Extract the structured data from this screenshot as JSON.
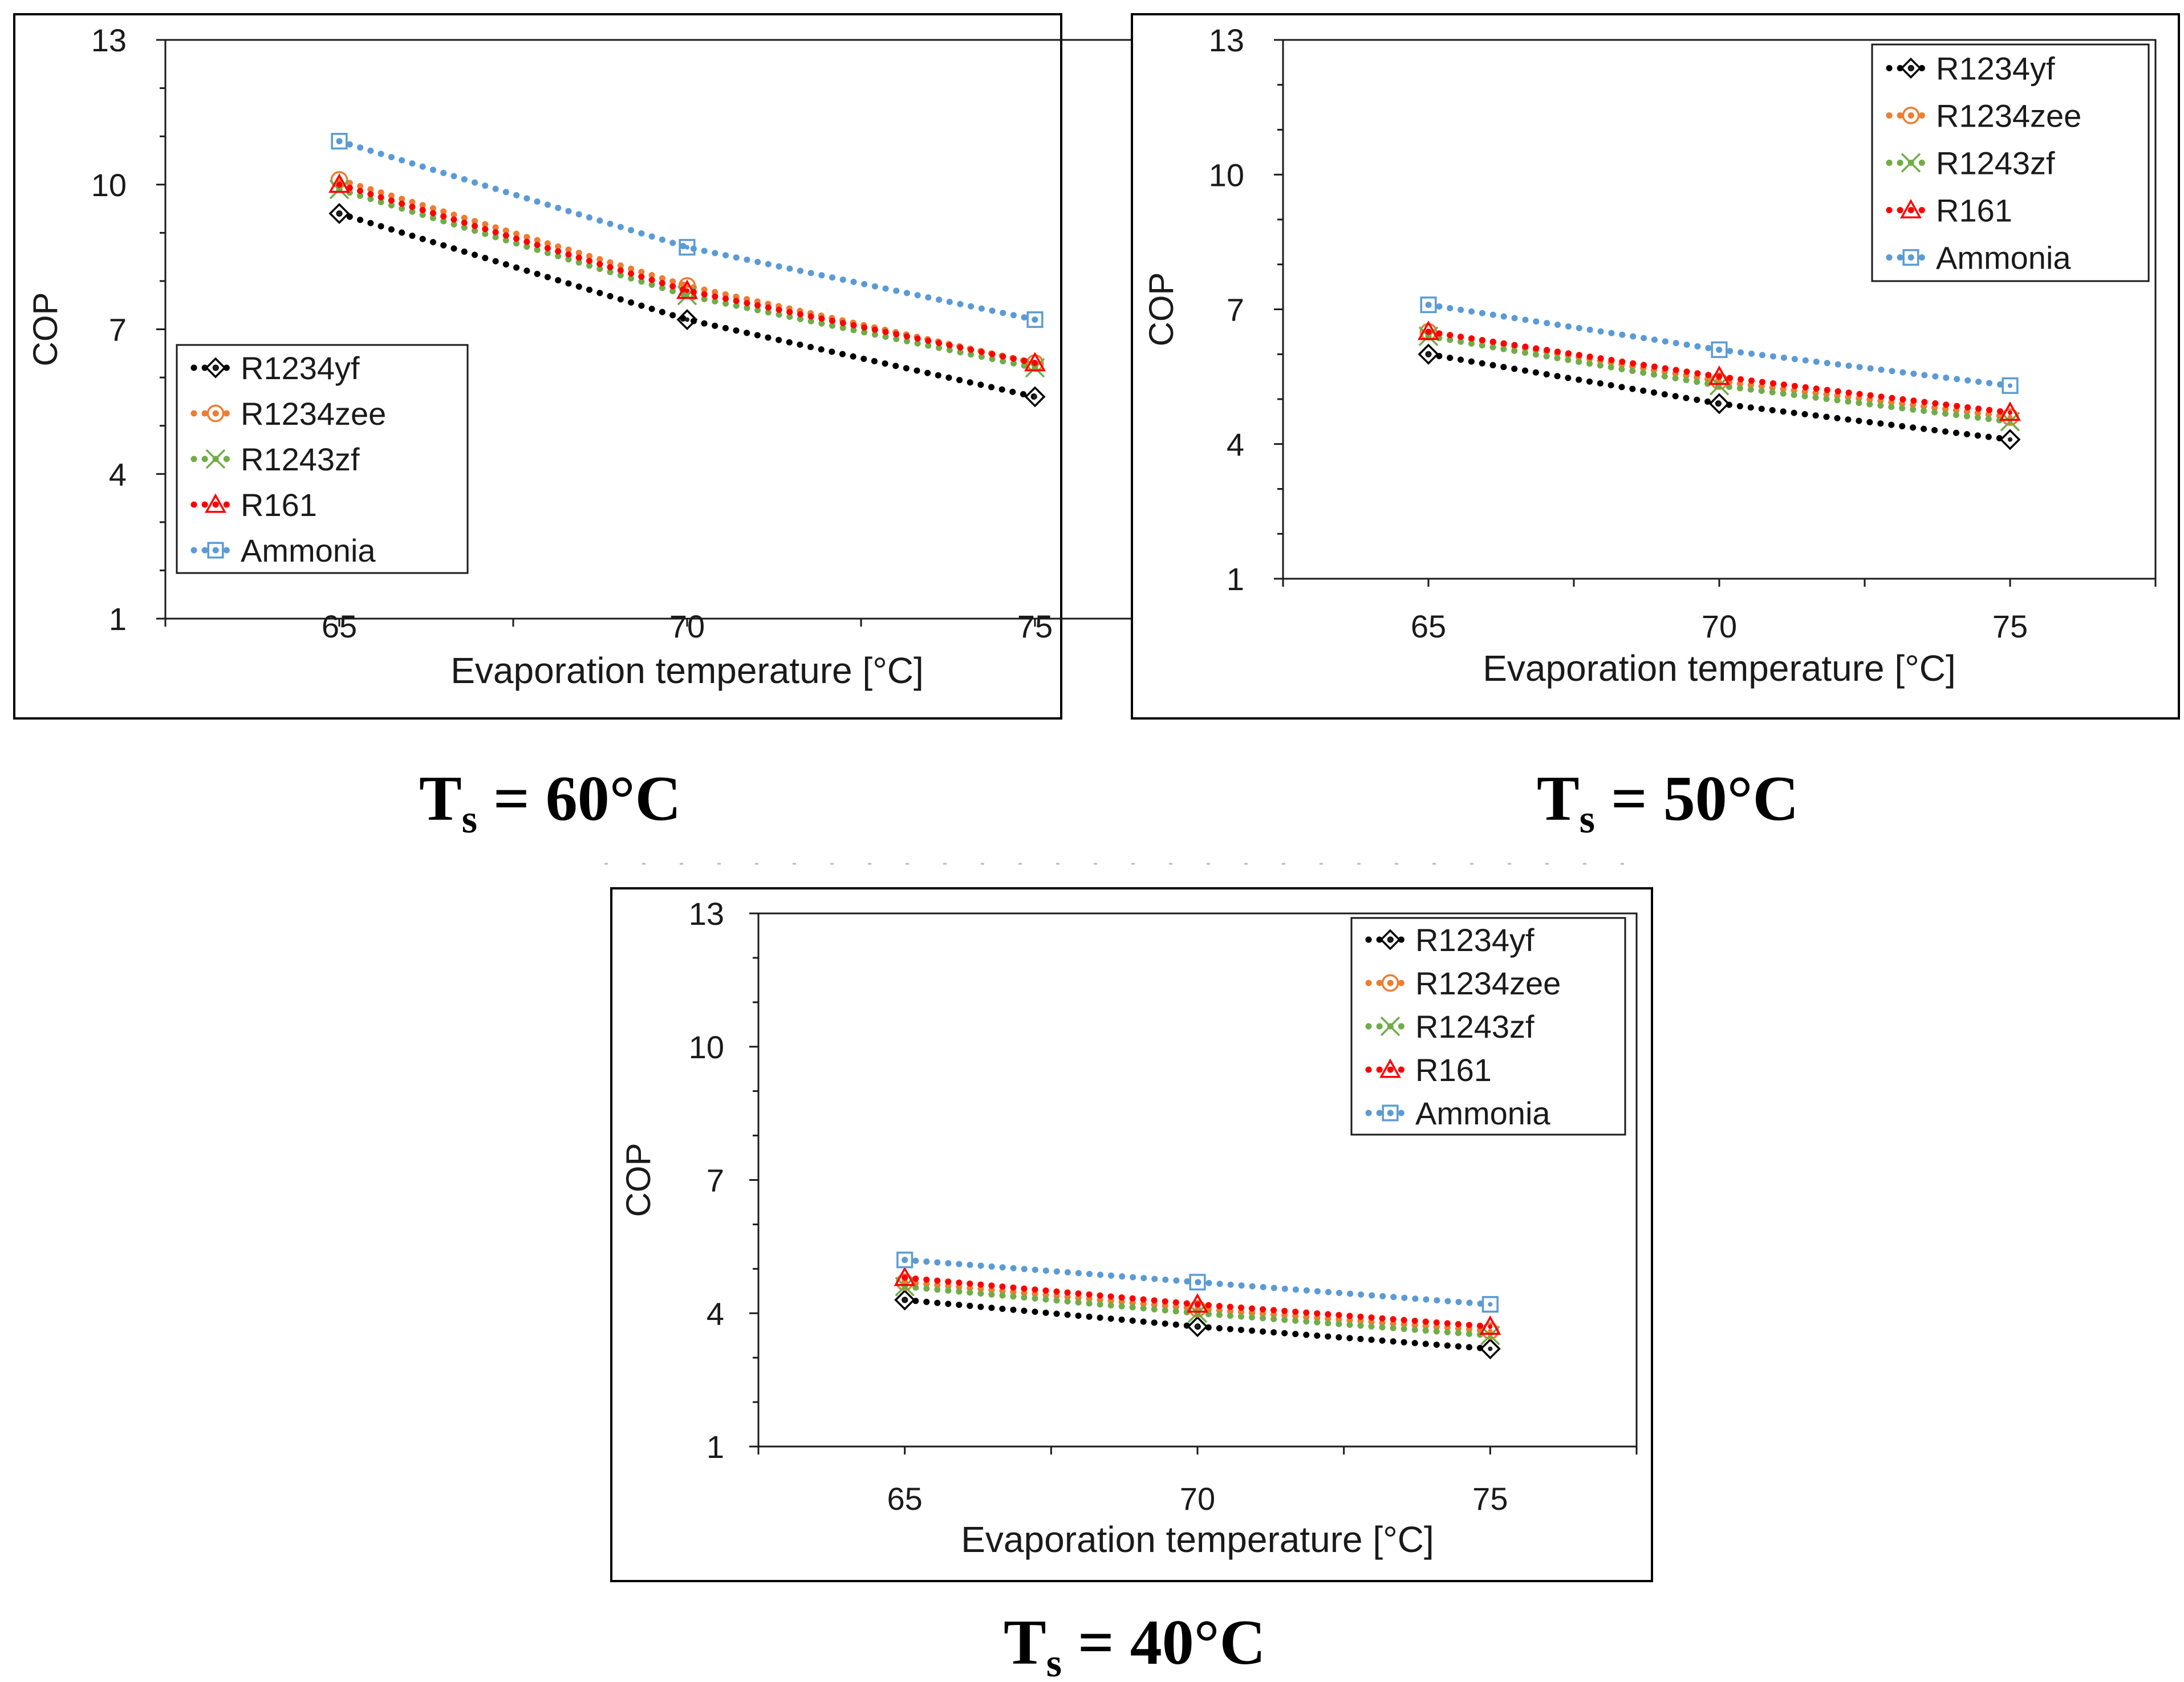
{
  "figure": {
    "colors": {
      "R1234yf": "#000000",
      "R1234zee": "#ed7d31",
      "R1243zf": "#70ad47",
      "R161": "#ff0000",
      "Ammonia": "#5b9bd5"
    },
    "marker_icons": {
      "R1234yf": "diamond-icon",
      "R1234zee": "circle-icon",
      "R1243zf": "x-cross-icon",
      "R161": "triangle-icon",
      "Ammonia": "square-icon"
    }
  },
  "chart_data": [
    {
      "type": "line",
      "caption": {
        "prefix": "T",
        "subscript": "s",
        "rest": " = 60°C"
      },
      "xlabel": "Evaporation temperature [°C]",
      "ylabel": "COP",
      "x": [
        65,
        70,
        75
      ],
      "x_ticks": [
        "65",
        "70",
        "75"
      ],
      "xlim": [
        62.5,
        77.5
      ],
      "y_ticks": [
        "1",
        "4",
        "7",
        "10",
        "13"
      ],
      "ylim": [
        1,
        13
      ],
      "legend_position": "bottom-left",
      "series": [
        {
          "name": "R1234yf",
          "values": [
            9.4,
            7.2,
            5.6
          ]
        },
        {
          "name": "R1234zee",
          "values": [
            10.1,
            7.9,
            6.3
          ]
        },
        {
          "name": "R1243zf",
          "values": [
            9.9,
            7.7,
            6.2
          ]
        },
        {
          "name": "R161",
          "values": [
            10.0,
            7.8,
            6.3
          ]
        },
        {
          "name": "Ammonia",
          "values": [
            10.9,
            8.7,
            7.2
          ]
        }
      ]
    },
    {
      "type": "line",
      "caption": {
        "prefix": "T",
        "subscript": "s",
        "rest": " = 50°C"
      },
      "xlabel": "Evaporation temperature [°C]",
      "ylabel": "COP",
      "x": [
        65,
        70,
        75
      ],
      "x_ticks": [
        "65",
        "70",
        "75"
      ],
      "xlim": [
        62.5,
        77.5
      ],
      "y_ticks": [
        "1",
        "4",
        "7",
        "10",
        "13"
      ],
      "ylim": [
        1,
        13
      ],
      "legend_position": "top-right",
      "series": [
        {
          "name": "R1234yf",
          "values": [
            6.0,
            4.9,
            4.1
          ]
        },
        {
          "name": "R1234zee",
          "values": [
            6.5,
            5.4,
            4.6
          ]
        },
        {
          "name": "R1243zf",
          "values": [
            6.4,
            5.3,
            4.5
          ]
        },
        {
          "name": "R161",
          "values": [
            6.5,
            5.5,
            4.7
          ]
        },
        {
          "name": "Ammonia",
          "values": [
            7.1,
            6.1,
            5.3
          ]
        }
      ]
    },
    {
      "type": "line",
      "caption": {
        "prefix": "T",
        "subscript": "s",
        "rest": " = 40°C"
      },
      "xlabel": "Evaporation temperature [°C]",
      "ylabel": "COP",
      "x": [
        65,
        70,
        75
      ],
      "x_ticks": [
        "65",
        "70",
        "75"
      ],
      "xlim": [
        62.5,
        77.5
      ],
      "y_ticks": [
        "1",
        "4",
        "7",
        "10",
        "13"
      ],
      "ylim": [
        1,
        13
      ],
      "legend_position": "top-right",
      "series": [
        {
          "name": "R1234yf",
          "values": [
            4.3,
            3.7,
            3.2
          ]
        },
        {
          "name": "R1234zee",
          "values": [
            4.7,
            4.1,
            3.6
          ]
        },
        {
          "name": "R1243zf",
          "values": [
            4.6,
            4.0,
            3.5
          ]
        },
        {
          "name": "R161",
          "values": [
            4.8,
            4.2,
            3.7
          ]
        },
        {
          "name": "Ammonia",
          "values": [
            5.2,
            4.7,
            4.2
          ]
        }
      ]
    }
  ]
}
